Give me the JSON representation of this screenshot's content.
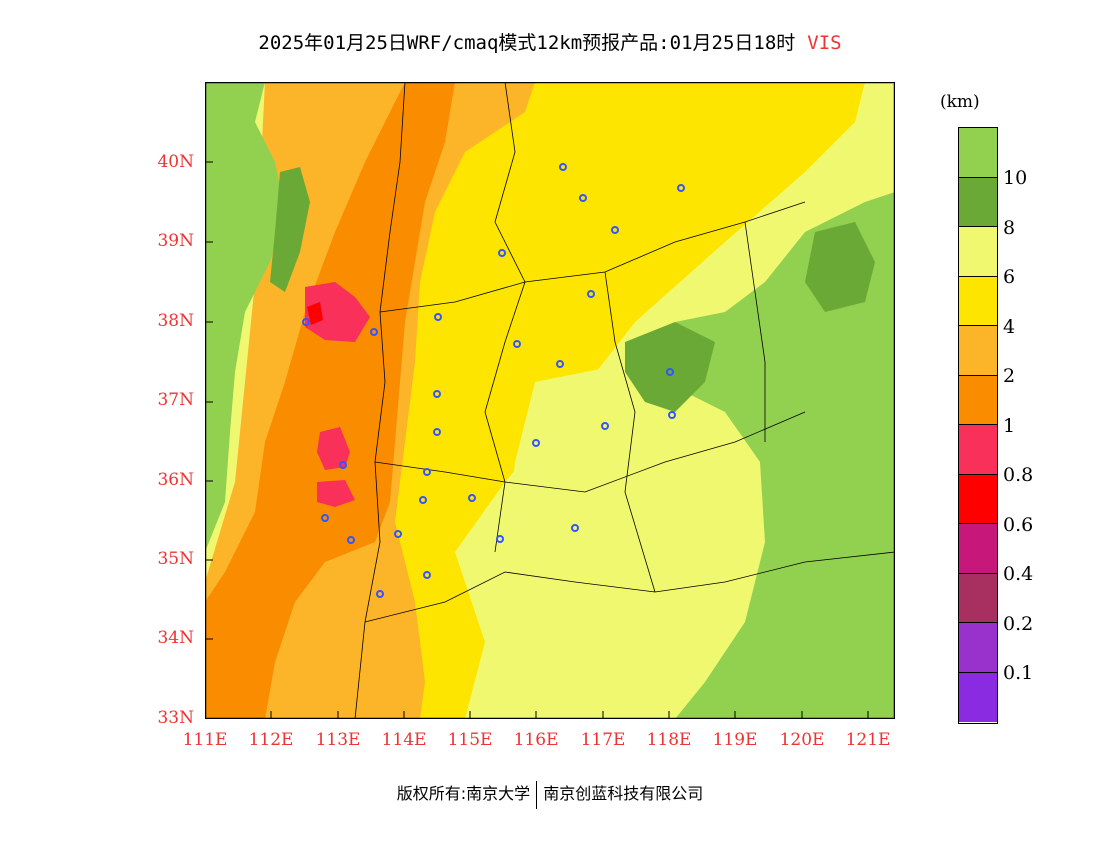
{
  "title": {
    "main": "2025年01月25日WRF/cmaq模式12km预报产品:01月25日18时",
    "variable": "VIS"
  },
  "map": {
    "lat_labels": [
      "40N",
      "39N",
      "38N",
      "37N",
      "36N",
      "35N",
      "34N",
      "33N"
    ],
    "lon_labels": [
      "111E",
      "112E",
      "113E",
      "114E",
      "115E",
      "116E",
      "117E",
      "118E",
      "119E",
      "120E",
      "121E"
    ],
    "lat_range": [
      33,
      41
    ],
    "lon_range": [
      111,
      121.4
    ],
    "field_colors": {
      "gt10": "#92d050",
      "8to10": "#6aa935",
      "6to8": "#f0f870",
      "4to6": "#fde500",
      "2to4": "#fcb428",
      "1to2": "#fa8c00",
      "0_8to1": "#f8305a",
      "0_6to0_8": "#ff0000",
      "0_4to0_6": "#c8177a"
    },
    "station_color": "#3355ff"
  },
  "colorbar": {
    "unit": "(km)",
    "labels": [
      "10",
      "8",
      "6",
      "4",
      "2",
      "1",
      "0.8",
      "0.6",
      "0.4",
      "0.2",
      "0.1"
    ],
    "colors": [
      "#92d050",
      "#6aa935",
      "#f0f870",
      "#fde500",
      "#fcb428",
      "#fa8c00",
      "#f8305a",
      "#ff0000",
      "#c8177a",
      "#a83060",
      "#9932cc",
      "#8a2be2"
    ]
  },
  "footer": {
    "copyright": "版权所有:南京大学",
    "company": "南京创蓝科技有限公司"
  }
}
